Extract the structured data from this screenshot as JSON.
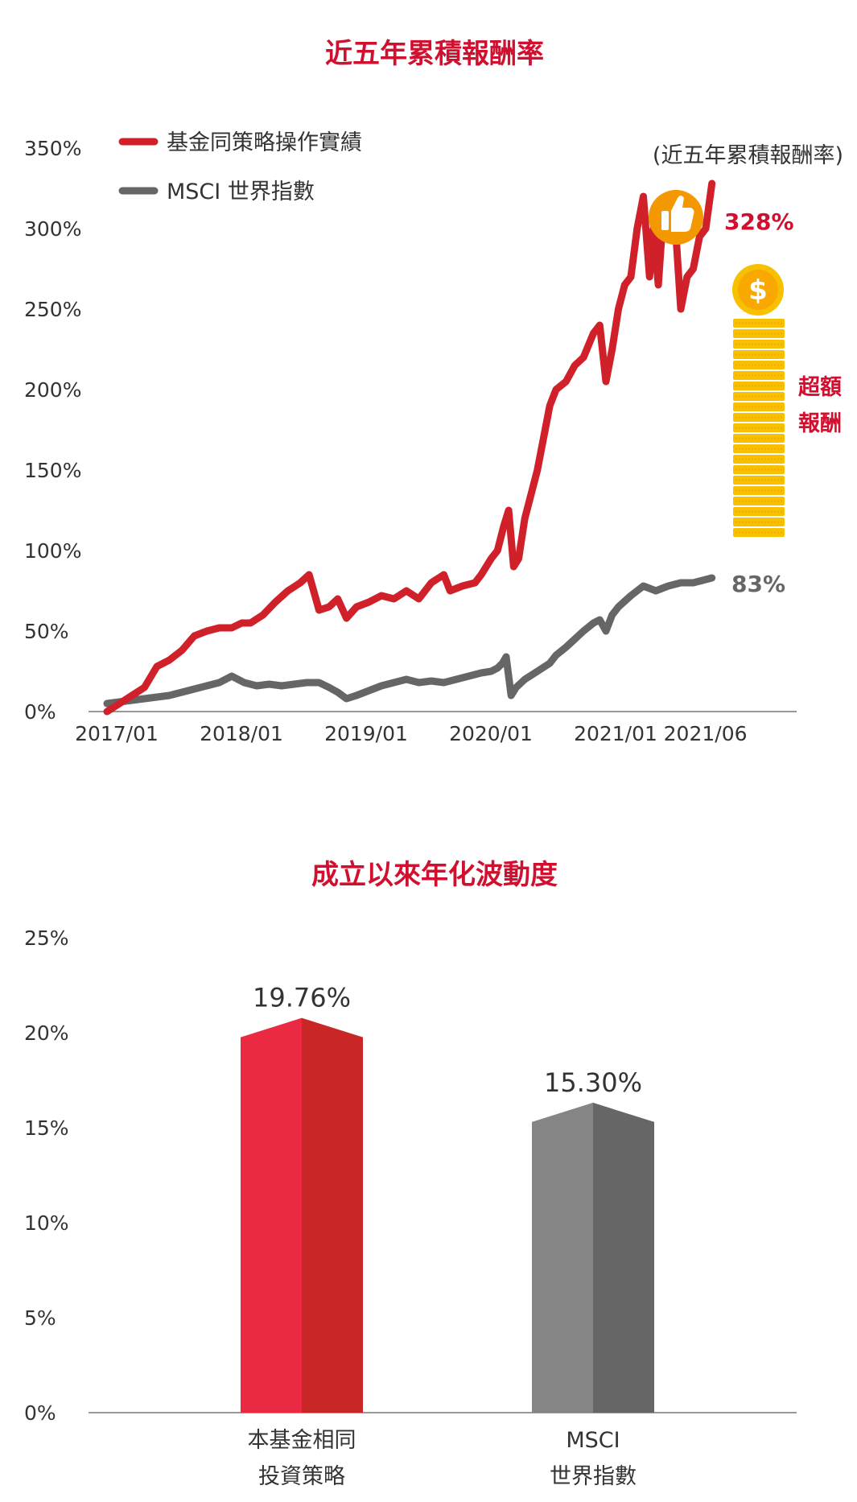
{
  "colors": {
    "title": "#d0102e",
    "fund": "#d0212b",
    "msci": "#666666",
    "bar_fund_light": "#ea2a42",
    "bar_fund_dark": "#c92626",
    "bar_msci_light": "#858585",
    "bar_msci_dark": "#666666",
    "coin": "#f7c000",
    "axis": "#999999"
  },
  "chart_data": [
    {
      "type": "line",
      "title": "近五年累積報酬率",
      "note": "(近五年累積報酬率)",
      "ylim": [
        0,
        350
      ],
      "yticks": [
        "0%",
        "50%",
        "100%",
        "150%",
        "200%",
        "250%",
        "300%",
        "350%"
      ],
      "xticks": [
        "2017/01",
        "2018/01",
        "2019/01",
        "2020/01",
        "2021/01",
        "2021/06"
      ],
      "grid": false,
      "legend_position": "top-left",
      "annotations": {
        "excess_line1": "超額",
        "excess_line2": "報酬",
        "thumbs_up": "thumbs-up-icon",
        "coin": "dollar-coin-icon"
      },
      "series": [
        {
          "name": "基金同策略操作實績",
          "end_label": "328%",
          "x": [
            2017.0,
            2017.1,
            2017.2,
            2017.3,
            2017.4,
            2017.5,
            2017.6,
            2017.7,
            2017.8,
            2017.9,
            2018.0,
            2018.08,
            2018.15,
            2018.25,
            2018.35,
            2018.45,
            2018.55,
            2018.62,
            2018.7,
            2018.78,
            2018.85,
            2018.92,
            2019.0,
            2019.1,
            2019.2,
            2019.3,
            2019.4,
            2019.5,
            2019.6,
            2019.7,
            2019.75,
            2019.85,
            2019.95,
            2020.0,
            2020.08,
            2020.13,
            2020.18,
            2020.22,
            2020.26,
            2020.3,
            2020.35,
            2020.45,
            2020.55,
            2020.6,
            2020.68,
            2020.75,
            2020.82,
            2020.9,
            2020.95,
            2021.0,
            2021.05,
            2021.1,
            2021.15,
            2021.2,
            2021.25,
            2021.3,
            2021.35,
            2021.38,
            2021.42,
            2021.46,
            2021.5,
            2021.55,
            2021.6,
            2021.65,
            2021.7,
            2021.75,
            2021.8,
            2021.85
          ],
          "values": [
            0,
            5,
            10,
            15,
            28,
            32,
            38,
            47,
            50,
            52,
            52,
            55,
            55,
            60,
            68,
            75,
            80,
            85,
            63,
            65,
            70,
            58,
            65,
            68,
            72,
            70,
            75,
            70,
            80,
            85,
            75,
            78,
            80,
            85,
            95,
            100,
            115,
            125,
            90,
            95,
            120,
            150,
            190,
            200,
            205,
            215,
            220,
            235,
            240,
            205,
            225,
            250,
            265,
            270,
            300,
            320,
            270,
            300,
            265,
            310,
            300,
            310,
            250,
            270,
            275,
            295,
            300,
            328
          ]
        },
        {
          "name": "MSCI 世界指數",
          "end_label": "83%",
          "x": [
            2017.0,
            2017.1,
            2017.2,
            2017.3,
            2017.4,
            2017.5,
            2017.6,
            2017.7,
            2017.8,
            2017.9,
            2018.0,
            2018.1,
            2018.2,
            2018.3,
            2018.4,
            2018.5,
            2018.6,
            2018.7,
            2018.78,
            2018.85,
            2018.92,
            2019.0,
            2019.1,
            2019.2,
            2019.3,
            2019.4,
            2019.5,
            2019.6,
            2019.7,
            2019.8,
            2019.9,
            2020.0,
            2020.08,
            2020.13,
            2020.17,
            2020.2,
            2020.24,
            2020.28,
            2020.35,
            2020.45,
            2020.55,
            2020.6,
            2020.68,
            2020.75,
            2020.82,
            2020.9,
            2020.95,
            2021.0,
            2021.05,
            2021.1,
            2021.2,
            2021.3,
            2021.4,
            2021.5,
            2021.6,
            2021.7,
            2021.8,
            2021.85
          ],
          "values": [
            5,
            6,
            7,
            8,
            9,
            10,
            12,
            14,
            16,
            18,
            22,
            18,
            16,
            17,
            16,
            17,
            18,
            18,
            15,
            12,
            8,
            10,
            13,
            16,
            18,
            20,
            18,
            19,
            18,
            20,
            22,
            24,
            25,
            27,
            30,
            34,
            10,
            15,
            20,
            25,
            30,
            35,
            40,
            45,
            50,
            55,
            57,
            50,
            60,
            65,
            72,
            78,
            75,
            78,
            80,
            80,
            82,
            83
          ]
        }
      ]
    },
    {
      "type": "bar",
      "title": "成立以來年化波動度",
      "ylim": [
        0,
        25
      ],
      "yticks": [
        "0%",
        "5%",
        "10%",
        "15%",
        "20%",
        "25%"
      ],
      "categories": [
        {
          "line1": "本基金相同",
          "line2": "投資策略"
        },
        {
          "line1": "MSCI",
          "line2": "世界指數"
        }
      ],
      "values": [
        19.76,
        15.3
      ],
      "value_labels": [
        "19.76%",
        "15.30%"
      ]
    }
  ]
}
